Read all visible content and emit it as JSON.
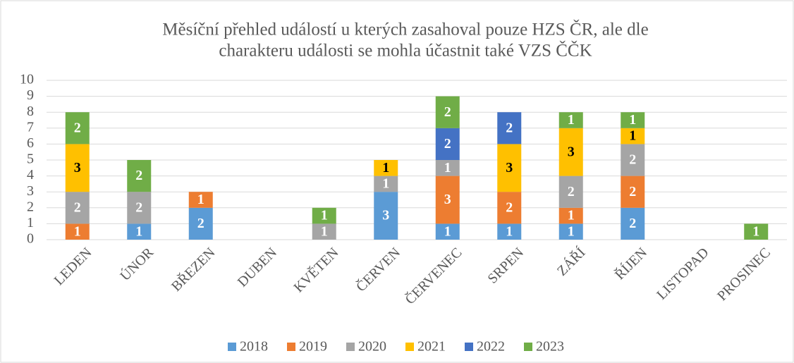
{
  "chart_data": {
    "type": "stacked_bar",
    "title": [
      "Měsíční přehled událostí u kterých zasahoval pouze HZS ČR, ale dle",
      "charakteru události se mohla účastnit také VZS ČČK"
    ],
    "categories": [
      "LEDEN",
      "ÚNOR",
      "BŘEZEN",
      "DUBEN",
      "KVĚTEN",
      "ČERVEN",
      "ČERVENEC",
      "SRPEN",
      "ZÁŘÍ",
      "ŘÍJEN",
      "LISTOPAD",
      "PROSINEC"
    ],
    "series": [
      {
        "name": "2018",
        "color": "#5b9bd5",
        "label_color": "#ffffff",
        "values": [
          null,
          1,
          2,
          null,
          null,
          3,
          1,
          1,
          1,
          2,
          null,
          null
        ]
      },
      {
        "name": "2019",
        "color": "#ed7d31",
        "label_color": "#ffffff",
        "values": [
          1,
          null,
          1,
          null,
          null,
          null,
          3,
          2,
          1,
          2,
          null,
          null
        ]
      },
      {
        "name": "2020",
        "color": "#a5a5a5",
        "label_color": "#ffffff",
        "values": [
          2,
          2,
          null,
          null,
          1,
          1,
          1,
          null,
          2,
          2,
          null,
          null
        ]
      },
      {
        "name": "2021",
        "color": "#ffc000",
        "label_color": "#000000",
        "values": [
          3,
          null,
          null,
          null,
          null,
          1,
          null,
          3,
          3,
          1,
          null,
          null
        ]
      },
      {
        "name": "2022",
        "color": "#4472c4",
        "label_color": "#ffffff",
        "values": [
          null,
          null,
          null,
          null,
          null,
          null,
          2,
          2,
          null,
          null,
          null,
          null
        ]
      },
      {
        "name": "2023",
        "color": "#70ad47",
        "label_color": "#ffffff",
        "values": [
          2,
          2,
          null,
          null,
          1,
          null,
          2,
          null,
          1,
          1,
          null,
          1
        ]
      }
    ],
    "ylim": [
      0,
      10
    ],
    "yticks": [
      0,
      1,
      2,
      3,
      4,
      5,
      6,
      7,
      8,
      9,
      10
    ],
    "grid": true,
    "legend": "bottom"
  }
}
